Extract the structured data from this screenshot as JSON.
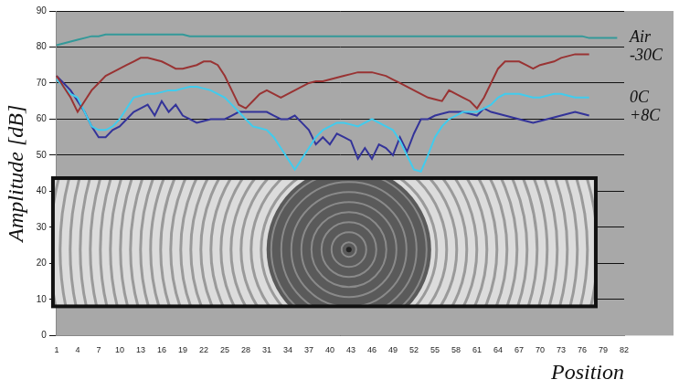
{
  "chart_data": {
    "type": "line",
    "x_label": "Position",
    "y_label": "Amplitude [dB]",
    "categories": [
      "1",
      null,
      null,
      "4",
      null,
      null,
      "7",
      null,
      null,
      "10",
      null,
      null,
      "13",
      null,
      null,
      "16",
      null,
      null,
      "19",
      null,
      null,
      "22",
      null,
      null,
      "25",
      null,
      null,
      "28",
      null,
      null,
      "31",
      null,
      null,
      "34",
      null,
      null,
      "37",
      null,
      null,
      "40",
      null,
      null,
      "43",
      null,
      null,
      "46",
      null,
      null,
      "49",
      null,
      null,
      "52",
      null,
      null,
      "55",
      null,
      null,
      "58",
      null,
      null,
      "61",
      null,
      null,
      "64",
      null,
      null,
      "67",
      null,
      null,
      "70",
      null,
      null,
      "73",
      null,
      null,
      "76",
      null,
      null,
      "79",
      null,
      null,
      "82"
    ],
    "series": [
      {
        "name": "Air",
        "color": "#339999",
        "values": [
          80.5,
          81,
          81.5,
          82,
          82.5,
          83,
          83,
          83.5,
          83.5,
          83.5,
          83.5,
          83.5,
          83.5,
          83.5,
          83.5,
          83.5,
          83.5,
          83.5,
          83.5,
          83,
          83,
          83,
          83,
          83,
          83,
          83,
          83,
          83,
          83,
          83,
          83,
          83,
          83,
          83,
          83,
          83,
          83,
          83,
          83,
          83,
          83,
          83,
          83,
          83,
          83,
          83,
          83,
          83,
          83,
          83,
          83,
          83,
          83,
          83,
          83,
          83,
          83,
          83,
          83,
          83,
          83,
          83,
          83,
          83,
          83,
          83,
          83,
          83,
          83,
          83,
          83,
          83,
          83,
          83,
          83,
          83,
          82.5,
          82.5,
          82.5,
          82.5,
          82.5,
          null
        ]
      },
      {
        "name": "-30C",
        "color": "#993333",
        "values": [
          72,
          69,
          66,
          62,
          65,
          68,
          70,
          72,
          73,
          74,
          75,
          76,
          77,
          77,
          76.5,
          76,
          75,
          74,
          74,
          74.5,
          75,
          76,
          76,
          75,
          72,
          68,
          64,
          63,
          65,
          67,
          68,
          67,
          66,
          67,
          68,
          69,
          70,
          70.5,
          70.5,
          71,
          71.5,
          72,
          72.5,
          73,
          73,
          73,
          72.5,
          72,
          71,
          70,
          69,
          68,
          67,
          66,
          65.5,
          65,
          68,
          67,
          66,
          65,
          63,
          66,
          70,
          74,
          76,
          76,
          76,
          75,
          74,
          75,
          75.5,
          76,
          77,
          77.5,
          78,
          78,
          78,
          null,
          null,
          null,
          null,
          null
        ]
      },
      {
        "name": "0C",
        "color": "#40ccee",
        "values": [
          71,
          69,
          67,
          66,
          62,
          58,
          57,
          57,
          58,
          60,
          63,
          66,
          66.5,
          67,
          67,
          67.5,
          68,
          68,
          68.5,
          69,
          69,
          68.5,
          68,
          67,
          66,
          64,
          62,
          60,
          58,
          57.5,
          57,
          55,
          52,
          49,
          46,
          49,
          52,
          55,
          57,
          58,
          59,
          59,
          58.5,
          58,
          59,
          60,
          59,
          58,
          57,
          54,
          50,
          46,
          45.5,
          50,
          55,
          58,
          60,
          61,
          62,
          62,
          62,
          63,
          64,
          66,
          67,
          67,
          67,
          66.5,
          66,
          66,
          66.5,
          67,
          67,
          66.5,
          66,
          66,
          66,
          null,
          null,
          null,
          null,
          null
        ]
      },
      {
        "name": "+8C",
        "color": "#333399",
        "values": [
          72,
          70,
          68,
          65,
          62,
          58,
          55,
          55,
          57,
          58,
          60,
          62,
          63,
          64,
          61,
          65,
          62,
          64,
          61,
          60,
          59,
          59.5,
          60,
          60,
          60,
          61,
          62,
          62,
          62,
          62,
          62,
          61,
          60,
          60,
          61,
          59,
          57,
          53,
          55,
          53,
          56,
          55,
          54,
          49,
          52,
          49,
          53,
          52,
          50,
          55,
          51,
          56,
          60,
          60,
          61,
          61.5,
          62,
          62,
          62,
          61.5,
          61,
          63,
          62,
          61.5,
          61,
          60.5,
          60,
          59.5,
          59,
          59.5,
          60,
          60.5,
          61,
          61.5,
          62,
          61.5,
          61,
          null,
          null,
          null,
          null,
          null
        ]
      }
    ],
    "ylim": [
      0,
      90
    ],
    "yticks": [
      0,
      10,
      20,
      30,
      40,
      50,
      60,
      70,
      80,
      90
    ],
    "grid": true,
    "marker": "none",
    "line_style": "solid"
  }
}
